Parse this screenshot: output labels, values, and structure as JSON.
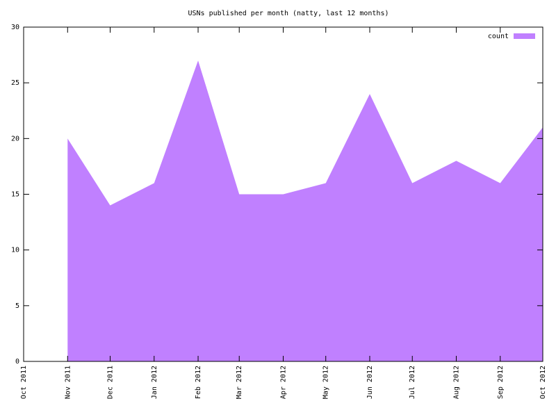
{
  "chart_data": {
    "type": "area",
    "title": "USNs published per month (natty, last 12 months)",
    "x": [
      "Nov 2011",
      "Dec 2011",
      "Jan 2012",
      "Feb 2012",
      "Mar 2012",
      "Apr 2012",
      "May 2012",
      "Jun 2012",
      "Jul 2012",
      "Aug 2012",
      "Sep 2012",
      "Oct 2012"
    ],
    "series": [
      {
        "name": "count",
        "color": "#c080ff",
        "values": [
          20,
          14,
          16,
          27,
          15,
          15,
          16,
          24,
          16,
          18,
          16,
          21
        ]
      }
    ],
    "xlim": [
      "Oct 2011",
      "Oct 2012"
    ],
    "xticks": [
      "Oct 2011",
      "Nov 2011",
      "Dec 2011",
      "Jan 2012",
      "Feb 2012",
      "Mar 2012",
      "Apr 2012",
      "May 2012",
      "Jun 2012",
      "Jul 2012",
      "Aug 2012",
      "Sep 2012",
      "Oct 2012"
    ],
    "ylim": [
      0,
      30
    ],
    "yticks": [
      0,
      5,
      10,
      15,
      20,
      25,
      30
    ],
    "legend": "top-right"
  }
}
